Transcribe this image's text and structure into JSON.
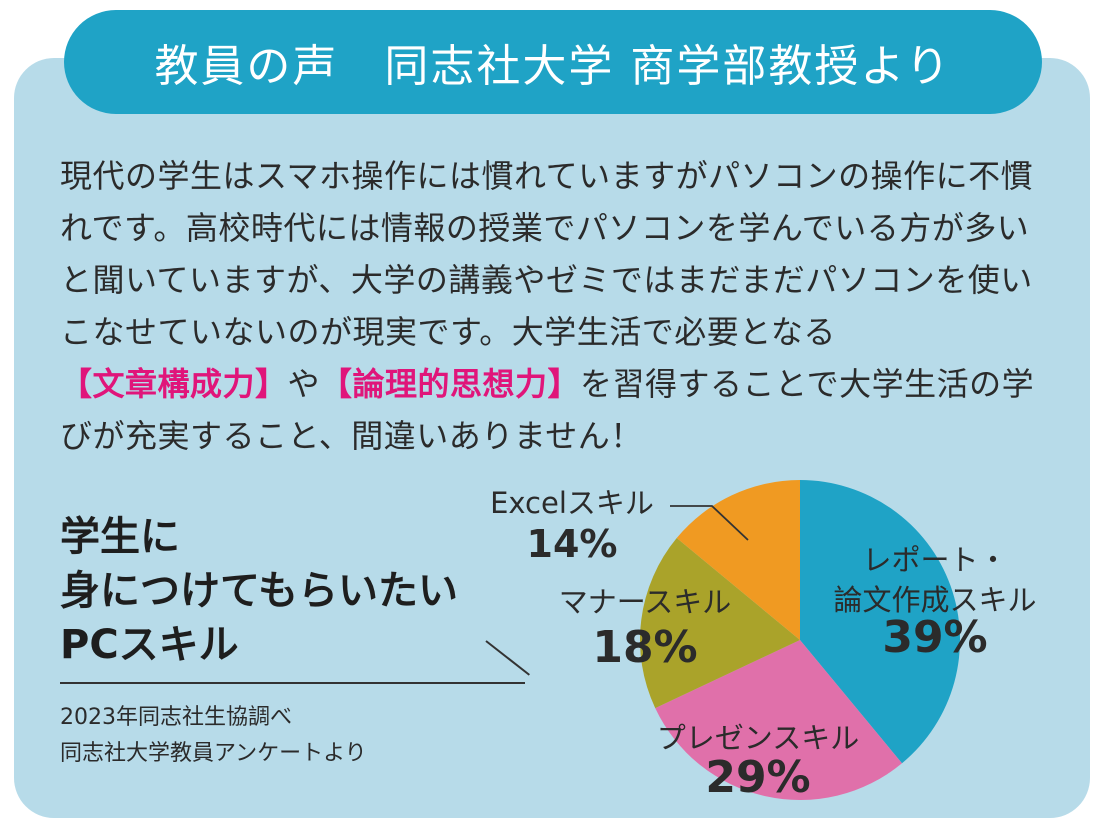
{
  "banner": {
    "text": "教員の声　同志社大学 商学部教授より"
  },
  "body": {
    "seg1": "現代の学生はスマホ操作には慣れていますがパソコンの操作に不慣れです。高校時代には情報の授業でパソコンを学んでいる方が多いと聞いていますが、大学の講義やゼミではまだまだパソコンを使いこなせていないのが現実です。大学生活で必要となる",
    "hl1": "【文章構成力】",
    "seg2": "や",
    "hl2": "【論理的思想力】",
    "seg3": "を習得することで大学生活の学びが充実すること、間違いありません！"
  },
  "subtitle": {
    "line1": "学生に",
    "line2": "身につけてもらいたい",
    "line3": "PCスキル"
  },
  "source": {
    "line1": "2023年同志社生協調べ",
    "line2": "同志社大学教員アンケートより"
  },
  "colors": {
    "panel": "#b7dbe9",
    "banner": "#1fa3c6",
    "highlight": "#e0157a"
  },
  "chart_data": {
    "type": "pie",
    "title": "学生に身につけてもらいたいPCスキル",
    "slices": [
      {
        "name_lines": [
          "レポート・",
          "論文作成スキル"
        ],
        "value": 39,
        "pct_label": "39%",
        "color": "#1fa3c6"
      },
      {
        "name_lines": [
          "プレゼンスキル"
        ],
        "value": 29,
        "pct_label": "29%",
        "color": "#e070aa"
      },
      {
        "name_lines": [
          "マナースキル"
        ],
        "value": 18,
        "pct_label": "18%",
        "color": "#aaa32a"
      },
      {
        "name_lines": [
          "Excelスキル"
        ],
        "value": 14,
        "pct_label": "14%",
        "color": "#f09a22"
      }
    ]
  }
}
